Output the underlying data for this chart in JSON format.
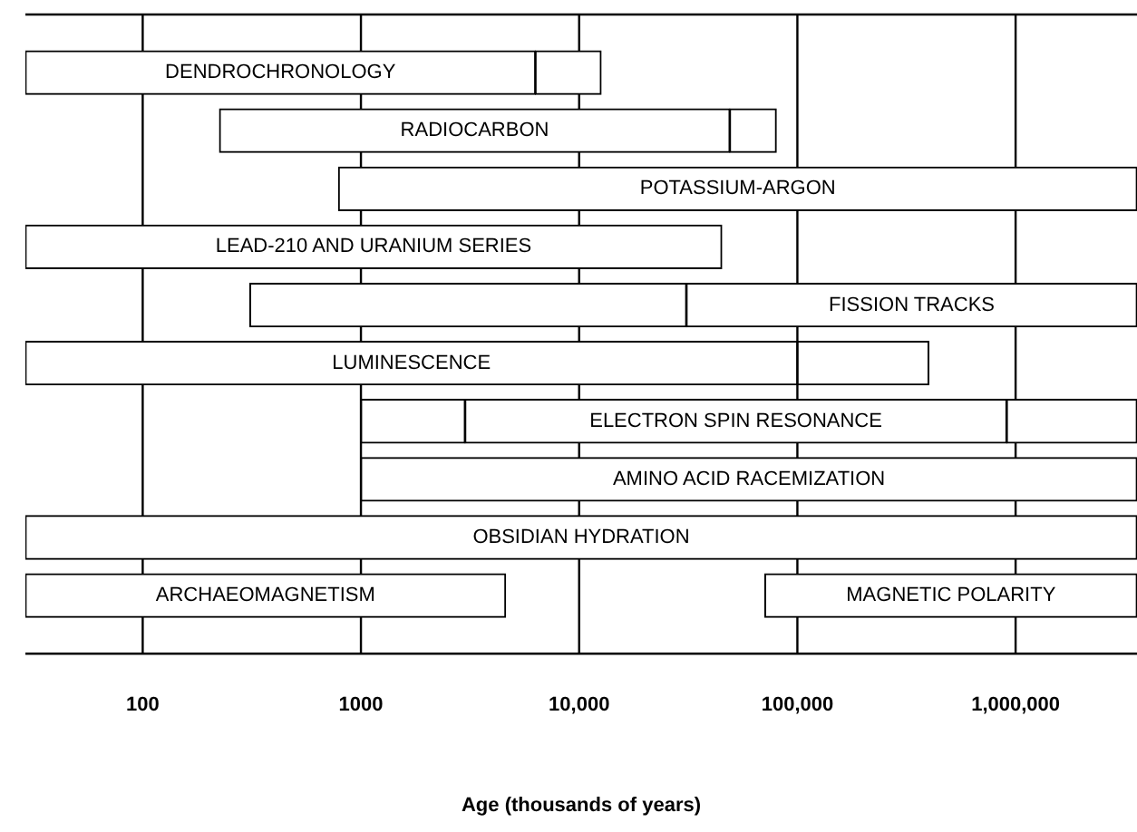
{
  "chart_data": {
    "type": "bar",
    "orientation": "horizontal",
    "xlabel": "Age (thousands of years)",
    "categories": [
      null,
      null,
      null,
      null,
      null,
      null,
      null,
      null,
      null,
      null
    ],
    "series": [
      {
        "color": "#ffffff",
        "base": [
          29,
          225,
          790,
          29,
          31000,
          29,
          3000,
          1000,
          29,
          29
        ],
        "values": [
          6271,
          48775,
          3599210,
          44971,
          3569000,
          99971,
          907000,
          3599000,
          3599971,
          4571
        ],
        "value_labels": [
          "DENDROCHRONOLOGY",
          "RADIOCARBON",
          "POTASSIUM-ARGON",
          "LEAD-210 AND URANIUM SERIES",
          "FISSION TRACKS",
          "LUMINESCENCE",
          "ELECTRON SPIN RESONANCE",
          "AMINO ACID RACEMIZATION",
          "OBSIDIAN HYDRATION",
          "ARCHAEOMAGNETISM"
        ]
      },
      {
        "color": "#ffffff",
        "base": [
          null,
          null,
          null,
          null,
          null,
          null,
          null,
          null,
          null,
          71000
        ],
        "values": [
          null,
          null,
          null,
          null,
          null,
          null,
          null,
          null,
          null,
          3529000
        ],
        "value_labels": [
          null,
          null,
          null,
          null,
          null,
          null,
          null,
          null,
          null,
          "MAGNETIC POLARITY"
        ]
      },
      {
        "color": "#ffffff",
        "base": [
          6300,
          49000,
          null,
          null,
          310,
          100000,
          1000,
          null,
          null,
          null
        ],
        "values": [
          6300,
          31000,
          null,
          null,
          30690,
          300000,
          2000,
          null,
          null,
          null
        ]
      },
      {
        "color": "#ffffff",
        "base": [
          null,
          null,
          null,
          null,
          null,
          null,
          910000,
          null,
          null,
          null
        ],
        "values": [
          null,
          null,
          null,
          null,
          null,
          null,
          2690000,
          null,
          null,
          null
        ]
      }
    ],
    "log": "x",
    "xlim": [
      29,
      3600000
    ],
    "xticks": [
      100,
      1000,
      {
        "value": 10000,
        "label": "10,000"
      },
      {
        "value": 100000,
        "label": "100,000"
      },
      {
        "value": 1000000,
        "label": "1,000,000"
      }
    ],
    "grid": "x",
    "tick_labels": "x",
    "legend": false
  }
}
